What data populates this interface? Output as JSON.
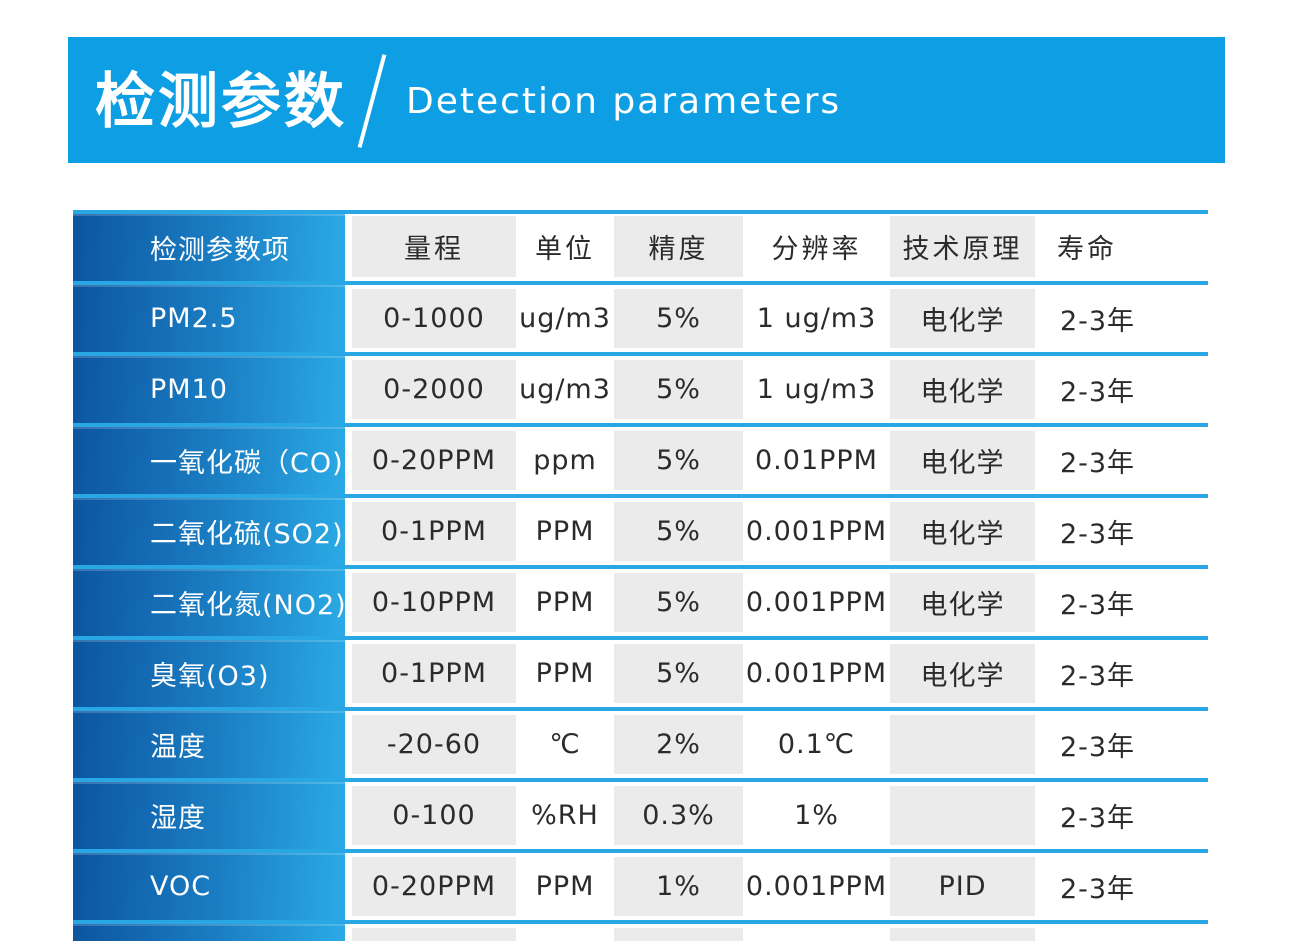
{
  "banner": {
    "title_zh": "检测参数",
    "title_en": "Detection parameters"
  },
  "table": {
    "row_header_label": "检测参数项",
    "columns": [
      "量程",
      "单位",
      "精度",
      "分辨率",
      "技术原理",
      "寿命"
    ],
    "rows": [
      {
        "name": "PM2.5",
        "range": "0-1000",
        "unit": "ug/m3",
        "accuracy": "5%",
        "resolution": "1 ug/m3",
        "principle": "电化学",
        "lifetime": "2-3年"
      },
      {
        "name": "PM10",
        "range": "0-2000",
        "unit": "ug/m3",
        "accuracy": "5%",
        "resolution": "1 ug/m3",
        "principle": "电化学",
        "lifetime": "2-3年"
      },
      {
        "name": "一氧化碳（CO)",
        "range": "0-20PPM",
        "unit": "ppm",
        "accuracy": "5%",
        "resolution": "0.01PPM",
        "principle": "电化学",
        "lifetime": "2-3年"
      },
      {
        "name": "二氧化硫(SO2)",
        "range": "0-1PPM",
        "unit": "PPM",
        "accuracy": "5%",
        "resolution": "0.001PPM",
        "principle": "电化学",
        "lifetime": "2-3年"
      },
      {
        "name": "二氧化氮(NO2)",
        "range": "0-10PPM",
        "unit": "PPM",
        "accuracy": "5%",
        "resolution": "0.001PPM",
        "principle": "电化学",
        "lifetime": "2-3年"
      },
      {
        "name": "臭氧(O3)",
        "range": "0-1PPM",
        "unit": "PPM",
        "accuracy": "5%",
        "resolution": "0.001PPM",
        "principle": "电化学",
        "lifetime": "2-3年"
      },
      {
        "name": "温度",
        "range": "-20-60",
        "unit": "℃",
        "accuracy": "2%",
        "resolution": "0.1℃",
        "principle": "",
        "lifetime": "2-3年"
      },
      {
        "name": "湿度",
        "range": "0-100",
        "unit": "%RH",
        "accuracy": "0.3%",
        "resolution": "1%",
        "principle": "",
        "lifetime": "2-3年"
      },
      {
        "name": "VOC",
        "range": "0-20PPM",
        "unit": "PPM",
        "accuracy": "1%",
        "resolution": "0.001PPM",
        "principle": "PID",
        "lifetime": "2-3年"
      }
    ]
  },
  "colors": {
    "banner_blue": "#0D9EE3",
    "separator_azure": "#29A7E4",
    "label_gradient_start": "#0C55A0",
    "label_gradient_end": "#2BAAE6",
    "column_gray": "#EBEBEB",
    "text_dark": "#2B2B2B"
  }
}
